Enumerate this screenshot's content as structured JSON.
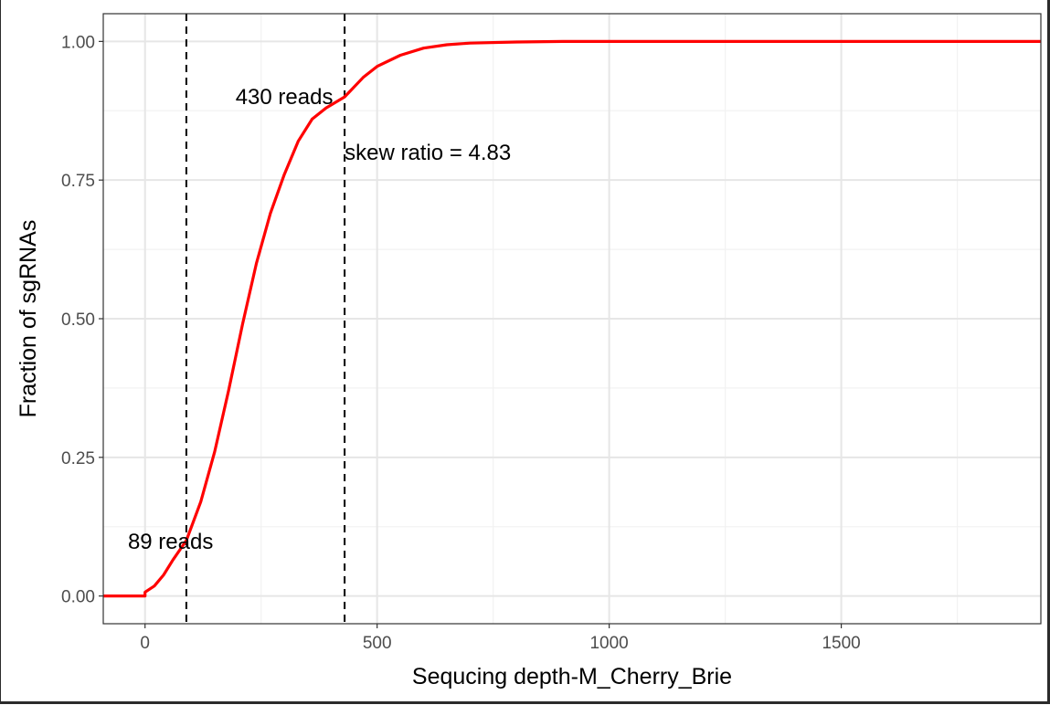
{
  "chart_data": {
    "type": "line",
    "title": "",
    "xlabel": "Sequcing depth-M_Cherry_Brie",
    "ylabel": "Fraction of sgRNAs",
    "xlim": [
      -90,
      1930
    ],
    "ylim": [
      -0.05,
      1.05
    ],
    "x_ticks": [
      0,
      500,
      1000,
      1500
    ],
    "x_tick_labels": [
      "0",
      "500",
      "1000",
      "1500"
    ],
    "y_ticks": [
      0,
      0.25,
      0.5,
      0.75,
      1.0
    ],
    "y_tick_labels": [
      "0.00",
      "0.25",
      "0.50",
      "0.75",
      "1.00"
    ],
    "grid": true,
    "series": [
      {
        "color": "#ff0000",
        "x": [
          -90,
          0,
          0,
          20,
          40,
          60,
          89,
          120,
          150,
          180,
          210,
          240,
          270,
          300,
          330,
          360,
          390,
          430,
          470,
          500,
          550,
          600,
          650,
          700,
          800,
          900,
          1000,
          1930
        ],
        "y": [
          0,
          0,
          0.007,
          0.018,
          0.038,
          0.065,
          0.1,
          0.17,
          0.26,
          0.37,
          0.49,
          0.6,
          0.69,
          0.76,
          0.82,
          0.86,
          0.88,
          0.9,
          0.935,
          0.955,
          0.975,
          0.988,
          0.994,
          0.997,
          0.999,
          1.0,
          1.0,
          1.0
        ]
      }
    ],
    "vlines": [
      {
        "x": 89,
        "style": "dashed",
        "color": "#000000"
      },
      {
        "x": 430,
        "style": "dashed",
        "color": "#000000"
      }
    ],
    "annotations": [
      {
        "text": "89 reads",
        "x": 55,
        "y": 0.098
      },
      {
        "text": "430 reads",
        "x": 300,
        "y": 0.9
      },
      {
        "text": "skew ratio = 4.83",
        "x": 430,
        "y": 0.8
      }
    ]
  }
}
